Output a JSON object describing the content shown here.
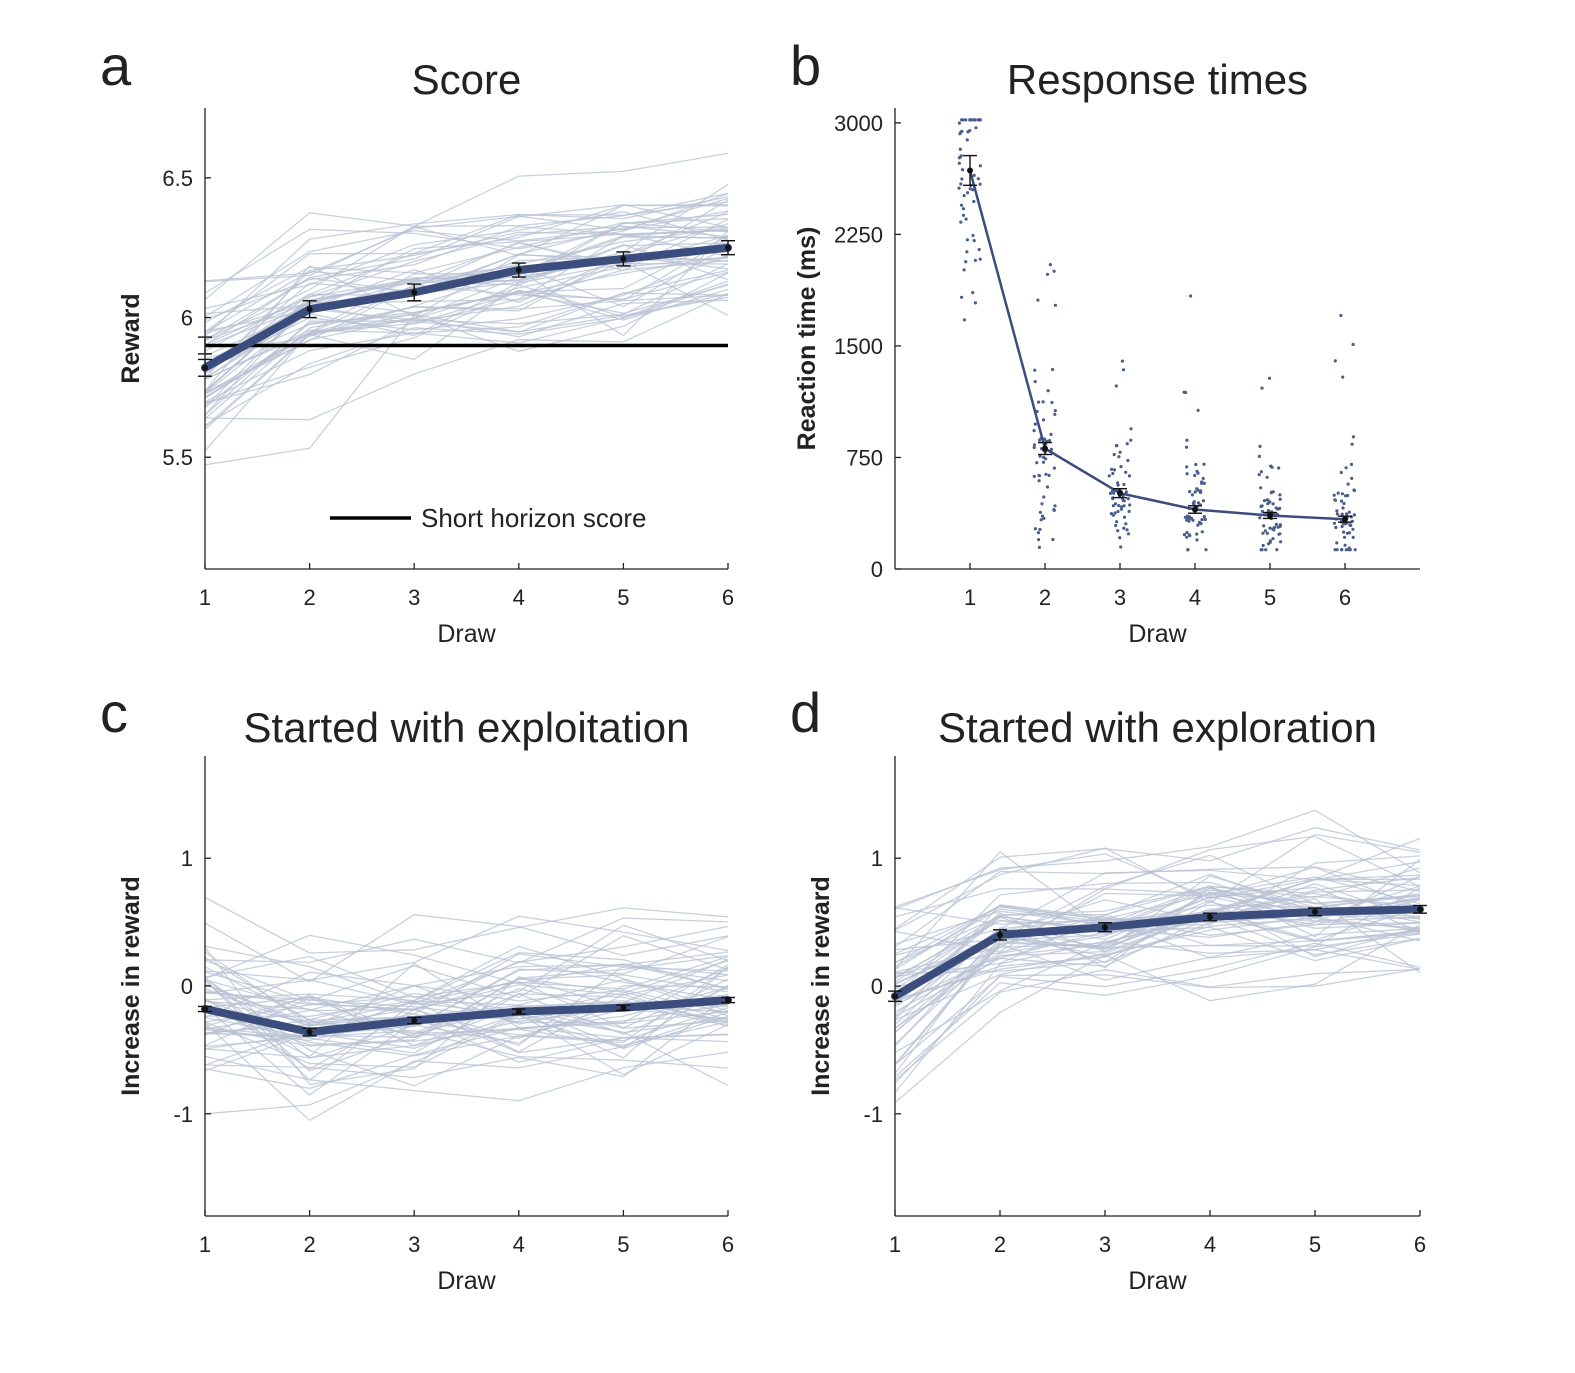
{
  "chart_data": [
    {
      "panel": "a",
      "type": "line",
      "title": "Score",
      "xlabel": "Draw",
      "ylabel": "Reward",
      "x": [
        1,
        2,
        3,
        4,
        5,
        6
      ],
      "xlim": [
        1,
        6
      ],
      "ylim": [
        5.1,
        6.75
      ],
      "yticks": [
        5.5,
        6,
        6.5
      ],
      "ytick_labels": [
        "5.5",
        "6",
        "6.5"
      ],
      "mean": [
        5.82,
        6.03,
        6.09,
        6.17,
        6.21,
        6.25
      ],
      "sem": [
        0.03,
        0.03,
        0.03,
        0.025,
        0.025,
        0.025
      ],
      "reference": {
        "label": "Short horizon score",
        "value": 5.9,
        "start_err": 0.03
      },
      "legend_position": "bottom-center",
      "individual_lines": 60
    },
    {
      "panel": "b",
      "type": "scatter",
      "title": "Response times",
      "xlabel": "Draw",
      "ylabel": "Reaction time (ms)",
      "x": [
        1,
        2,
        3,
        4,
        5,
        6
      ],
      "xlim": [
        0,
        7
      ],
      "ylim": [
        0,
        3100
      ],
      "yticks": [
        0,
        750,
        1500,
        2250,
        3000
      ],
      "ytick_labels": [
        "0",
        "750",
        "1500",
        "2250",
        "3000"
      ],
      "mean": [
        2680,
        810,
        510,
        400,
        360,
        335
      ],
      "sem": [
        100,
        40,
        30,
        25,
        20,
        20
      ],
      "individual_points": 60
    },
    {
      "panel": "c",
      "type": "line",
      "title": "Started with exploitation",
      "xlabel": "Draw",
      "ylabel": "Increase in reward",
      "x": [
        1,
        2,
        3,
        4,
        5,
        6
      ],
      "xlim": [
        1,
        6
      ],
      "ylim": [
        -1.8,
        1.8
      ],
      "yticks": [
        -1,
        0,
        1
      ],
      "ytick_labels": [
        "-1",
        "0",
        "1"
      ],
      "mean": [
        -0.18,
        -0.36,
        -0.27,
        -0.2,
        -0.17,
        -0.11
      ],
      "sem": [
        0.02,
        0.03,
        0.025,
        0.02,
        0.02,
        0.02
      ],
      "individual_lines": 60
    },
    {
      "panel": "d",
      "type": "line",
      "title": "Started with exploration",
      "xlabel": "Draw",
      "ylabel": "Increase in reward",
      "x": [
        1,
        2,
        3,
        4,
        5,
        6
      ],
      "xlim": [
        1,
        6
      ],
      "ylim": [
        -1.8,
        1.8
      ],
      "yticks": [
        -1,
        0,
        1
      ],
      "ytick_labels": [
        "-1",
        "0",
        "1"
      ],
      "mean": [
        -0.08,
        0.4,
        0.46,
        0.54,
        0.58,
        0.6
      ],
      "sem": [
        0.04,
        0.04,
        0.035,
        0.03,
        0.03,
        0.03
      ],
      "individual_lines": 60
    }
  ]
}
